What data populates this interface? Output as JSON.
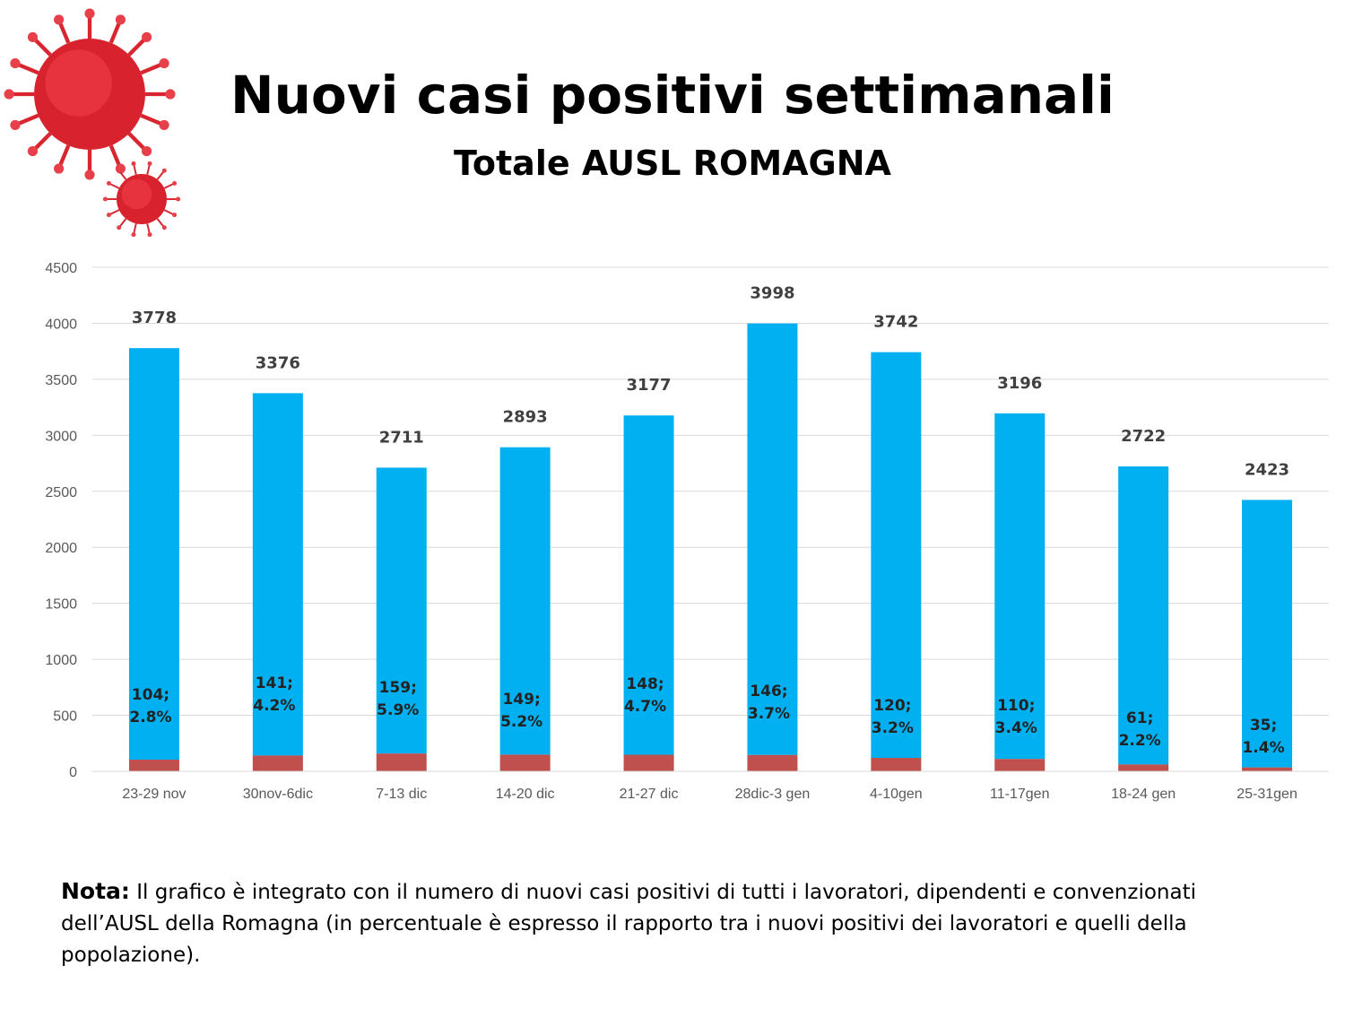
{
  "header": {
    "title": "Nuovi casi positivi settimanali",
    "subtitle": "Totale AUSL ROMAGNA"
  },
  "note": {
    "label": "Nota:",
    "text": " Il grafico è integrato con il numero di nuovi casi positivi di tutti i lavoratori, dipendenti e convenzionati dell’AUSL della Romagna (in percentuale è espresso il rapporto tra i nuovi positivi dei lavoratori e quelli della popolazione)."
  },
  "colors": {
    "population": "#00b0f0",
    "workers": "#c0504d"
  },
  "chart_data": {
    "type": "bar",
    "stacked": true,
    "title": "Nuovi casi positivi settimanali",
    "subtitle": "Totale AUSL ROMAGNA",
    "categories": [
      "23-29 nov",
      "30nov-6dic",
      "7-13 dic",
      "14-20 dic",
      "21-27 dic",
      "28dic-3 gen",
      "4-10gen",
      "11-17gen",
      "18-24 gen",
      "25-31gen"
    ],
    "totals": [
      3778,
      3376,
      2711,
      2893,
      3177,
      3998,
      3742,
      3196,
      2722,
      2423
    ],
    "workers": [
      104,
      141,
      159,
      149,
      148,
      146,
      120,
      110,
      61,
      35
    ],
    "worker_pct": [
      "2.8%",
      "4.2%",
      "5.9%",
      "5.2%",
      "4.7%",
      "3.7%",
      "3.2%",
      "3.4%",
      "2.2%",
      "1.4%"
    ],
    "worker_labels": [
      "104;",
      "141;",
      "159;",
      "149;",
      "148;",
      "146;",
      "120;",
      "110;",
      "61;",
      "35;"
    ],
    "ylim": [
      0,
      4500
    ],
    "yticks": [
      "0",
      "500",
      "1000",
      "1500",
      "2000",
      "2500",
      "3000",
      "3500",
      "4000",
      "4500"
    ],
    "grid": true
  }
}
